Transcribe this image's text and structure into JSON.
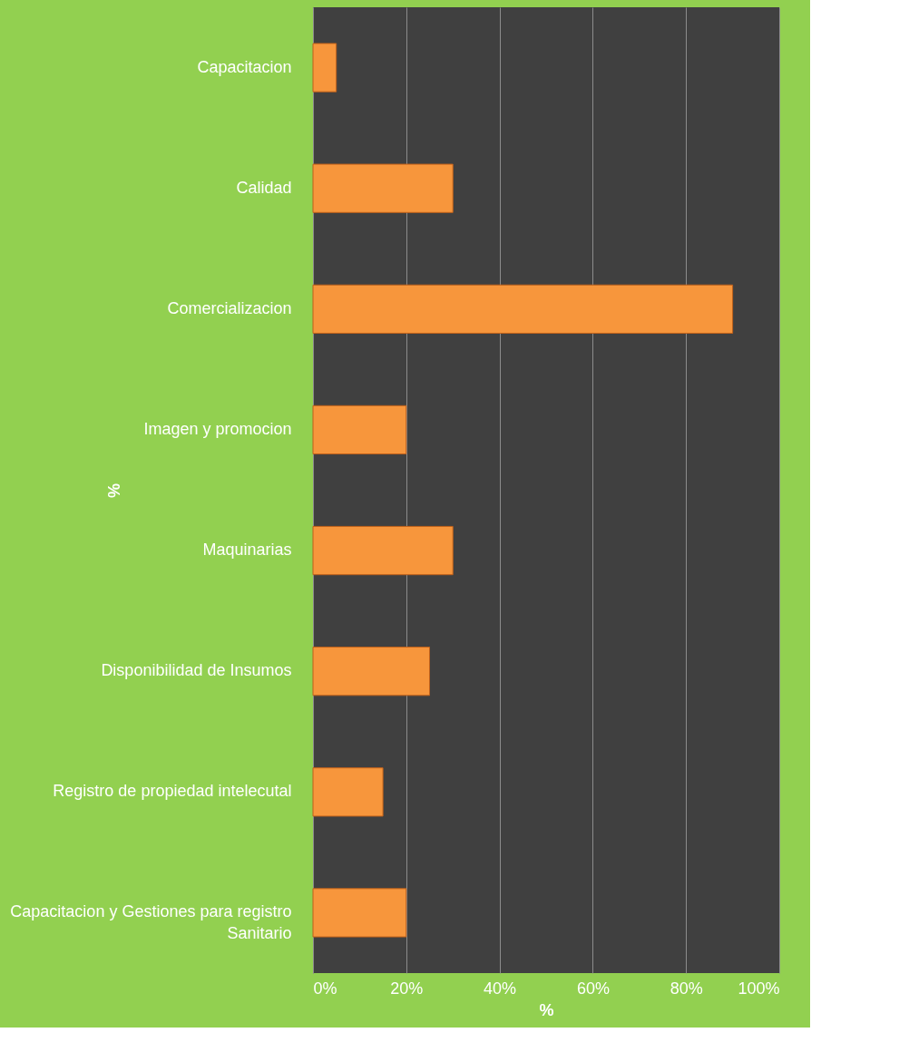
{
  "chart_data": {
    "type": "bar",
    "orientation": "horizontal",
    "xlabel": "%",
    "ylabel": "%",
    "categories": [
      "Capacitacion",
      "Calidad",
      "Comercializacion",
      "Imagen y promocion",
      "Maquinarias",
      "Disponibilidad de Insumos",
      "Registro de propiedad intelecutal",
      "Capacitacion y Gestiones para registro Sanitario"
    ],
    "values": [
      5,
      30,
      90,
      20,
      30,
      25,
      15,
      20
    ],
    "color": "#f7963c",
    "xlim": [
      0,
      100
    ],
    "xticks": [
      {
        "value": 0,
        "label": "0%"
      },
      {
        "value": 20,
        "label": "20%"
      },
      {
        "value": 40,
        "label": "40%"
      },
      {
        "value": 60,
        "label": "60%"
      },
      {
        "value": 80,
        "label": "80%"
      },
      {
        "value": 100,
        "label": "100%"
      }
    ],
    "grid": "x"
  }
}
